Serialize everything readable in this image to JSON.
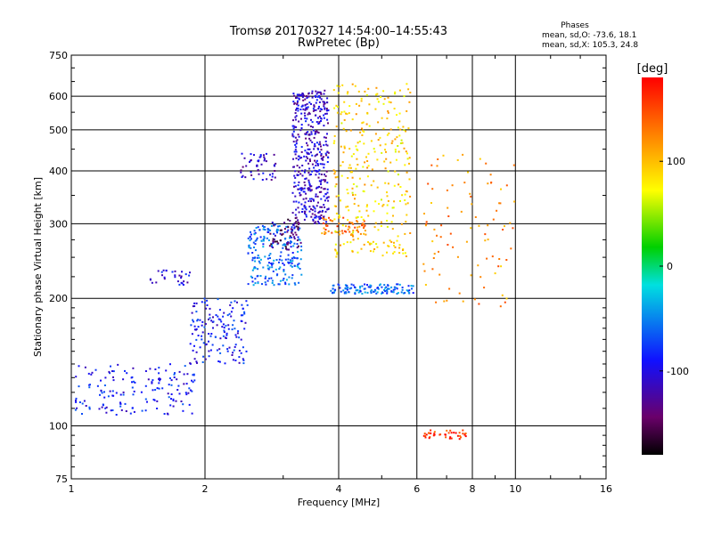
{
  "header": {
    "title_line1": "Tromsø 20170327 14:54:00–14:55:43",
    "title_line2": "RwPretec (Bp)",
    "stats_title": "Phases",
    "stats_o": "mean, sd,O: -73.6, 18.1",
    "stats_x": "mean, sd,X: 105.3, 24.8"
  },
  "colorbar": {
    "label": "[deg]",
    "ticks": [
      "100",
      "0",
      "-100"
    ],
    "tick_values": [
      100,
      0,
      -100
    ],
    "range": [
      -180,
      180
    ]
  },
  "chart_data": {
    "type": "scatter",
    "xlabel": "Frequency [MHz]",
    "ylabel": "Stationary phase Virtual Height [km]",
    "xscale": "log",
    "yscale": "log",
    "xlim": [
      1,
      16
    ],
    "ylim": [
      75,
      750
    ],
    "x_ticks": [
      1,
      2,
      4,
      6,
      8,
      10,
      16
    ],
    "x_tick_labels": [
      "1",
      "2",
      "4",
      "6",
      "8",
      "10",
      "16"
    ],
    "y_ticks": [
      75,
      100,
      200,
      300,
      400,
      500,
      600,
      750
    ],
    "y_tick_labels": [
      "75",
      "100",
      "200",
      "300",
      "400",
      "500",
      "600",
      "750"
    ],
    "grid": true,
    "colorscale": "rainbow (black → purple → blue → cyan → green → yellow → orange → red)",
    "clusters": [
      {
        "x": [
          1.02,
          1.9
        ],
        "y": [
          106,
          140
        ],
        "color": "-90",
        "count": 160
      },
      {
        "x": [
          1.5,
          1.85
        ],
        "y": [
          215,
          235
        ],
        "color": "-100",
        "count": 30
      },
      {
        "x": [
          1.85,
          2.5
        ],
        "y": [
          140,
          200
        ],
        "color": "-90",
        "count": 150
      },
      {
        "x": [
          2.5,
          3.3
        ],
        "y": [
          215,
          300
        ],
        "color": "-60",
        "count": 220
      },
      {
        "x": [
          2.4,
          2.9
        ],
        "y": [
          380,
          440
        ],
        "color": "-110",
        "count": 50
      },
      {
        "x": [
          2.8,
          3.3
        ],
        "y": [
          260,
          310
        ],
        "color": "-140",
        "count": 60
      },
      {
        "x": [
          3.15,
          3.8
        ],
        "y": [
          300,
          620
        ],
        "color": "-110",
        "count": 450
      },
      {
        "x": [
          3.6,
          4.6
        ],
        "y": [
          280,
          310
        ],
        "color": "130",
        "count": 60
      },
      {
        "x": [
          3.8,
          5.9
        ],
        "y": [
          205,
          216
        ],
        "color": "-60",
        "count": 120
      },
      {
        "x": [
          3.9,
          5.8
        ],
        "y": [
          250,
          650
        ],
        "color": "90",
        "count": 320
      },
      {
        "x": [
          6.2,
          10
        ],
        "y": [
          190,
          450
        ],
        "color": "120",
        "count": 90
      },
      {
        "x": [
          6.2,
          7.8
        ],
        "y": [
          93,
          98
        ],
        "color": "160",
        "count": 40
      }
    ]
  }
}
